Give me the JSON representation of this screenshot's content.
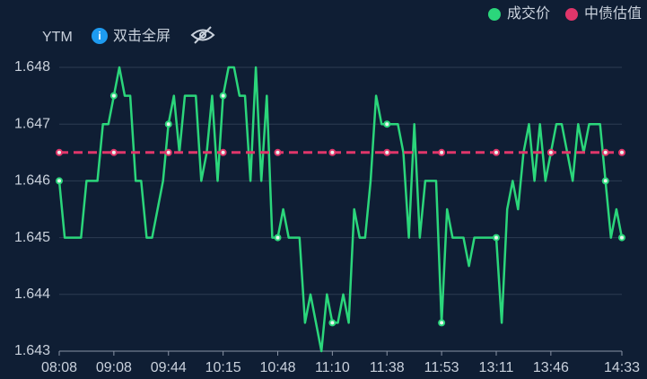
{
  "chart_data": {
    "type": "line",
    "y_label": "YTM",
    "toolbar_text": "双击全屏",
    "legend_position": "top-right",
    "grid": true,
    "ylim": [
      1.643,
      1.648
    ],
    "yticks": [
      1.643,
      1.644,
      1.645,
      1.646,
      1.647,
      1.648
    ],
    "categories": [
      "08:08",
      null,
      null,
      null,
      null,
      null,
      null,
      null,
      null,
      null,
      "09:08",
      null,
      null,
      null,
      null,
      null,
      null,
      null,
      null,
      null,
      "09:44",
      null,
      null,
      null,
      null,
      null,
      null,
      null,
      null,
      null,
      "10:15",
      null,
      null,
      null,
      null,
      null,
      null,
      null,
      null,
      null,
      "10:48",
      null,
      null,
      null,
      null,
      null,
      null,
      null,
      null,
      null,
      "11:10",
      null,
      null,
      null,
      null,
      null,
      null,
      null,
      null,
      null,
      "11:38",
      null,
      null,
      null,
      null,
      null,
      null,
      null,
      null,
      null,
      "11:53",
      null,
      null,
      null,
      null,
      null,
      null,
      null,
      null,
      null,
      "13:11",
      null,
      null,
      null,
      null,
      null,
      null,
      null,
      null,
      null,
      "13:46",
      null,
      null,
      null,
      null,
      null,
      null,
      null,
      null,
      null,
      null,
      null,
      null,
      "14:33"
    ],
    "series": [
      {
        "name": "成交价",
        "color": "#2bd67b",
        "dashed": false,
        "values": [
          1.646,
          1.645,
          1.645,
          1.645,
          1.645,
          1.646,
          1.646,
          1.646,
          1.647,
          1.647,
          1.6475,
          1.648,
          1.6475,
          1.6475,
          1.646,
          1.646,
          1.645,
          1.645,
          1.6455,
          1.646,
          1.647,
          1.6475,
          1.6465,
          1.6475,
          1.6475,
          1.6475,
          1.646,
          1.6465,
          1.6475,
          1.646,
          1.6475,
          1.648,
          1.648,
          1.6475,
          1.6475,
          1.646,
          1.648,
          1.646,
          1.6475,
          1.645,
          1.645,
          1.6455,
          1.645,
          1.645,
          1.645,
          1.6435,
          1.644,
          1.6435,
          1.643,
          1.644,
          1.6435,
          1.6435,
          1.644,
          1.6435,
          1.6455,
          1.645,
          1.645,
          1.646,
          1.6475,
          1.647,
          1.647,
          1.647,
          1.647,
          1.6465,
          1.645,
          1.647,
          1.645,
          1.646,
          1.646,
          1.646,
          1.6435,
          1.6455,
          1.645,
          1.645,
          1.645,
          1.6445,
          1.645,
          1.645,
          1.645,
          1.645,
          1.645,
          1.6435,
          1.6455,
          1.646,
          1.6455,
          1.6465,
          1.647,
          1.646,
          1.647,
          1.646,
          1.6465,
          1.647,
          1.647,
          1.6465,
          1.646,
          1.647,
          1.6465,
          1.647,
          1.647,
          1.647,
          1.646,
          1.645,
          1.6455,
          1.645
        ]
      },
      {
        "name": "中债估值",
        "color": "#e0366a",
        "dashed": true,
        "values": [
          1.6465,
          1.6465,
          1.6465,
          1.6465,
          1.6465,
          1.6465,
          1.6465,
          1.6465,
          1.6465,
          1.6465,
          1.6465,
          1.6465,
          1.6465,
          1.6465,
          1.6465,
          1.6465,
          1.6465,
          1.6465,
          1.6465,
          1.6465,
          1.6465,
          1.6465,
          1.6465,
          1.6465,
          1.6465,
          1.6465,
          1.6465,
          1.6465,
          1.6465,
          1.6465,
          1.6465,
          1.6465,
          1.6465,
          1.6465,
          1.6465,
          1.6465,
          1.6465,
          1.6465,
          1.6465,
          1.6465,
          1.6465,
          1.6465,
          1.6465,
          1.6465,
          1.6465,
          1.6465,
          1.6465,
          1.6465,
          1.6465,
          1.6465,
          1.6465,
          1.6465,
          1.6465,
          1.6465,
          1.6465,
          1.6465,
          1.6465,
          1.6465,
          1.6465,
          1.6465,
          1.6465,
          1.6465,
          1.6465,
          1.6465,
          1.6465,
          1.6465,
          1.6465,
          1.6465,
          1.6465,
          1.6465,
          1.6465,
          1.6465,
          1.6465,
          1.6465,
          1.6465,
          1.6465,
          1.6465,
          1.6465,
          1.6465,
          1.6465,
          1.6465,
          1.6465,
          1.6465,
          1.6465,
          1.6465,
          1.6465,
          1.6465,
          1.6465,
          1.6465,
          1.6465,
          1.6465,
          1.6465,
          1.6465,
          1.6465,
          1.6465,
          1.6465,
          1.6465,
          1.6465,
          1.6465,
          1.6465,
          1.6465,
          1.6465,
          1.6465,
          1.6465
        ]
      }
    ]
  }
}
